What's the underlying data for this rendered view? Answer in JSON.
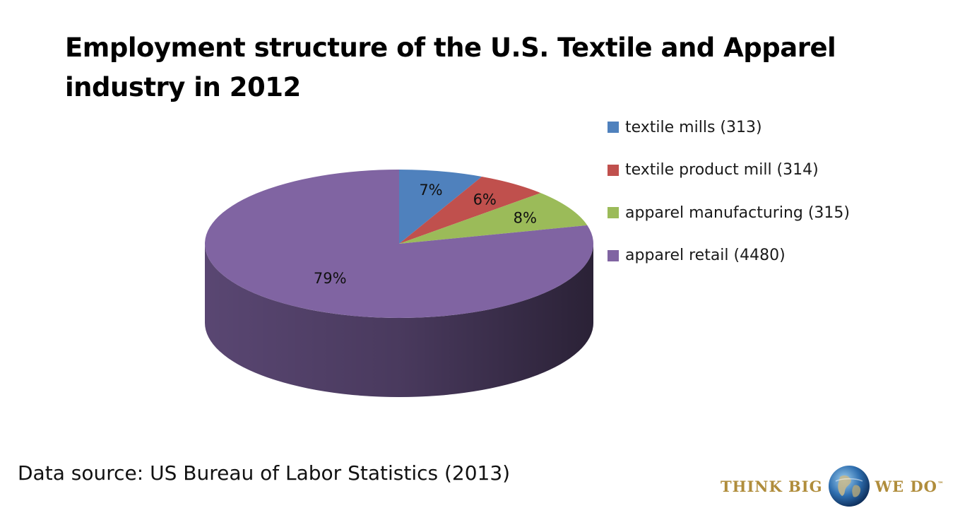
{
  "chart_data": {
    "type": "pie",
    "title": "Employment structure of the U.S. Textile and Apparel industry in 2012",
    "categories": [
      "textile mills (313)",
      "textile product mill (314)",
      "apparel manufacturing (315)",
      "apparel retail (4480)"
    ],
    "values": [
      7,
      6,
      8,
      79
    ],
    "value_labels": [
      "7%",
      "6%",
      "8%",
      "79%"
    ],
    "colors": [
      "#4f81bd",
      "#c0504d",
      "#9bbb59",
      "#8064a2"
    ],
    "side_colors": [
      "#3a5f8c",
      "#8e3b39",
      "#728a42",
      "#5e4a78"
    ],
    "legend_position": "right",
    "style": "3d"
  },
  "source_text": "Data source: US Bureau of Labor Statistics (2013)",
  "logo": {
    "left_text": "THINK BIG",
    "right_text": "WE DO",
    "tm": "™",
    "icon": "globe-icon"
  }
}
